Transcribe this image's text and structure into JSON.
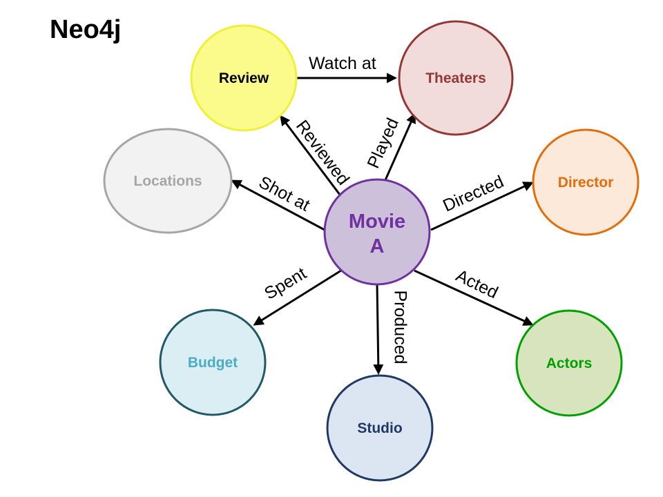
{
  "title": "Neo4j",
  "nodes": {
    "review": {
      "label": "Review",
      "fill": "#fbfb8c",
      "stroke": "#f0f03a",
      "text": "#000000"
    },
    "theaters": {
      "label": "Theaters",
      "fill": "#f2dcdb",
      "stroke": "#953735",
      "text": "#953735"
    },
    "locations": {
      "label": "Locations",
      "fill": "#f2f2f2",
      "stroke": "#a6a6a6",
      "text": "#a6a6a6"
    },
    "director": {
      "label": "Director",
      "fill": "#fde9d9",
      "stroke": "#e46c0a",
      "text": "#e46c0a"
    },
    "movie": {
      "label_line1": "Movie",
      "label_line2": "A",
      "fill": "#ccc0da",
      "stroke": "#7030a0",
      "text": "#7030a0"
    },
    "budget": {
      "label": "Budget",
      "fill": "#dbeef4",
      "stroke": "#215968",
      "text": "#4bacc6"
    },
    "studio": {
      "label": "Studio",
      "fill": "#dce6f2",
      "stroke": "#1f3864",
      "text": "#1f3864"
    },
    "actors": {
      "label": "Actors",
      "fill": "#d7e4bd",
      "stroke": "#00a000",
      "text": "#00a000"
    }
  },
  "edges": {
    "watch_at": "Watch at",
    "reviewed": "Reviewed",
    "played": "Played",
    "shot_at": "Shot at",
    "directed": "Directed",
    "spent": "Spent",
    "produced": "Produced",
    "acted": "Acted"
  },
  "colors": {
    "edge": "#000000"
  }
}
